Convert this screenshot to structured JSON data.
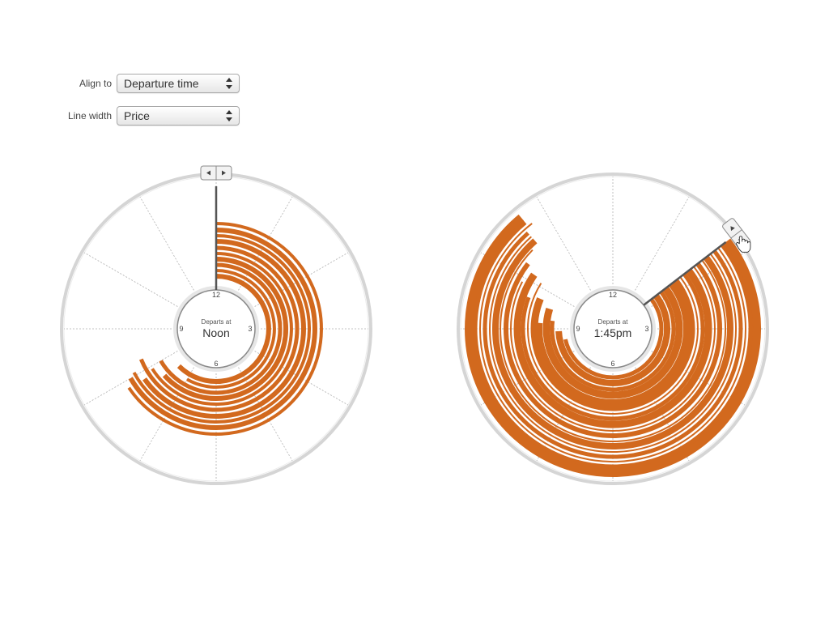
{
  "controls": {
    "align": {
      "label": "Align to",
      "value": "Departure time"
    },
    "line_width": {
      "label": "Line width",
      "value": "Price"
    }
  },
  "colors": {
    "arc": "#d2691e",
    "ring": "#d0d0d0",
    "hand": "#555555"
  },
  "icons": {
    "select_arrows": "updown-arrows-icon",
    "step_back": "triangle-left-icon",
    "step_forward": "triangle-right-icon",
    "cursor": "hand-pointer-icon"
  },
  "dials": [
    {
      "name": "dial-noon",
      "caption": "Departs at",
      "value": "Noon",
      "hour_labels": [
        "12",
        "3",
        "6",
        "9"
      ],
      "handle_hour": 12
    },
    {
      "name": "dial-145pm",
      "caption": "Departs at",
      "value": "1:45pm",
      "hour_labels": [
        "12",
        "3",
        "6",
        "9"
      ],
      "handle_hour": 1.75
    }
  ]
}
